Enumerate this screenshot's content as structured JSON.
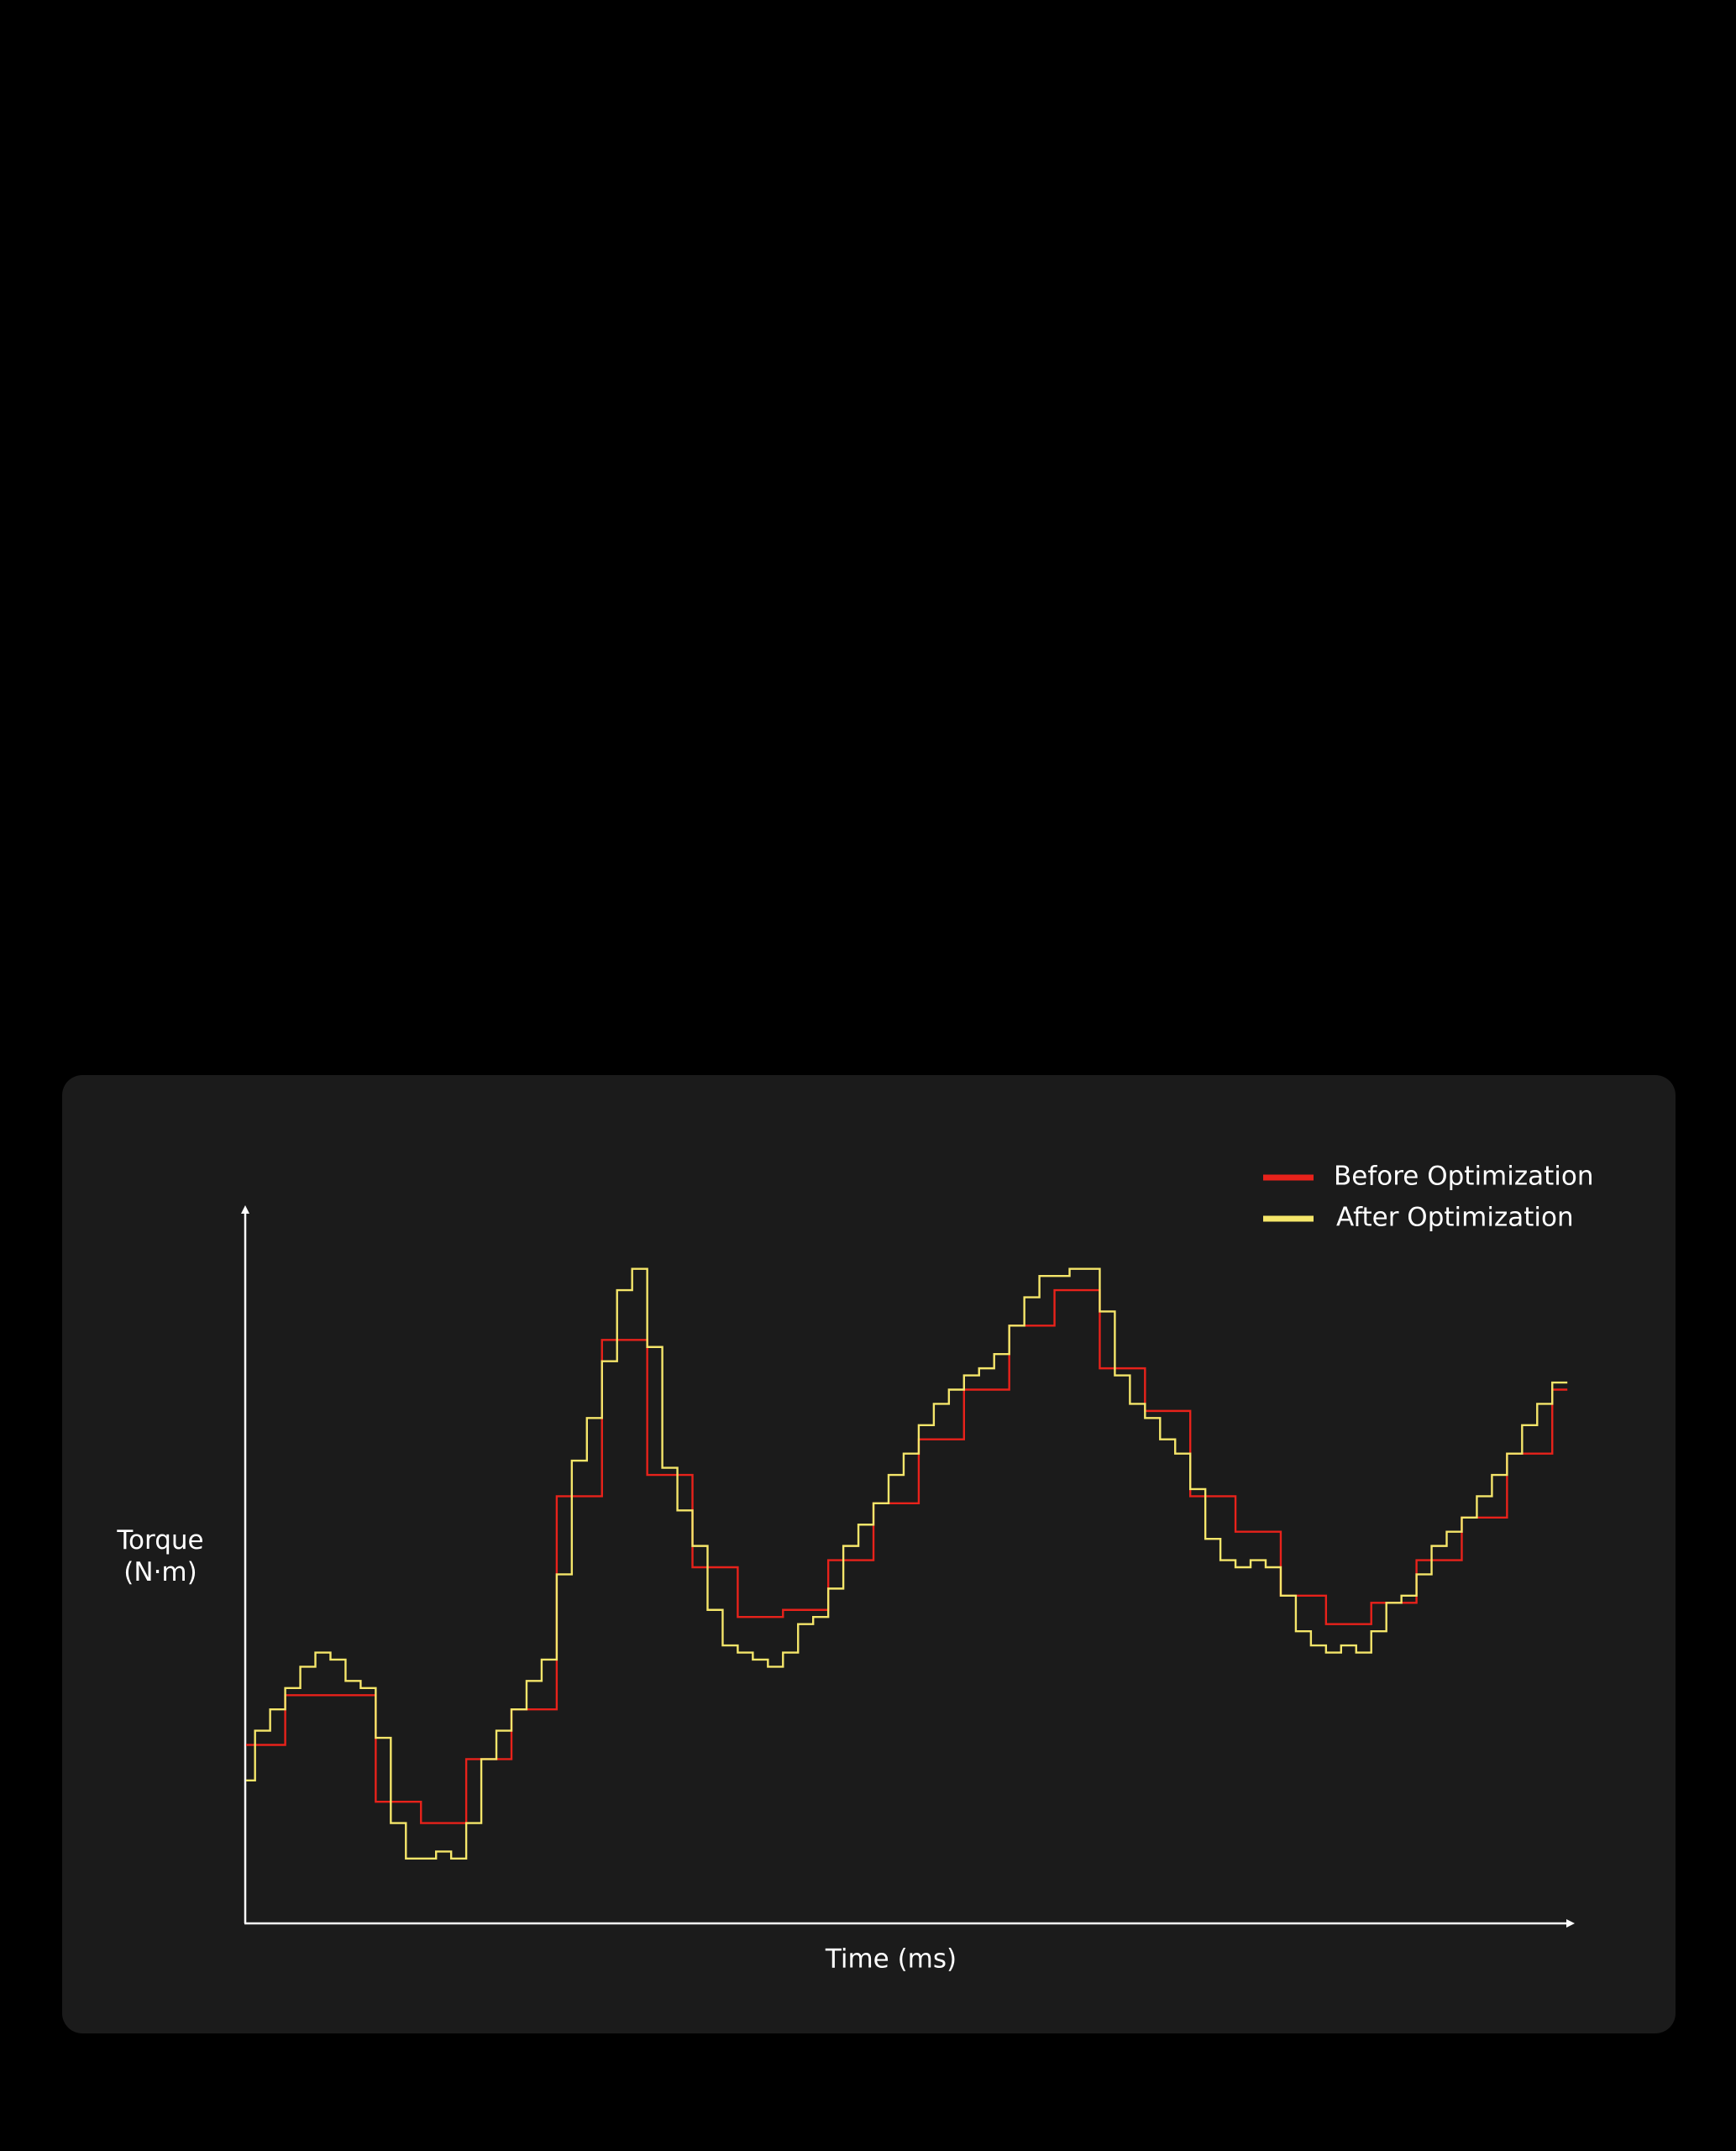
{
  "chart_data": {
    "type": "line",
    "drawstyle": "steps-post",
    "xlabel": "Time (ms)",
    "ylabel": "Torque (N·m)",
    "xlim": [
      0.4,
      88
    ],
    "ylim": [
      0,
      100
    ],
    "legend": "upper right",
    "series": [
      {
        "name": "Before Optimization",
        "color": "#e8221b",
        "x": [
          0.4,
          3,
          9,
          12,
          15,
          18,
          21,
          24,
          27,
          30,
          33,
          36,
          39,
          42,
          45,
          48,
          51,
          54,
          57,
          60,
          63,
          66,
          69,
          72,
          75,
          78,
          81,
          84,
          87
        ],
        "values": [
          25,
          32,
          17,
          14,
          23,
          30,
          60,
          82,
          63,
          50,
          43,
          44,
          51,
          59,
          68,
          75,
          84,
          89,
          78,
          72,
          60,
          55,
          46,
          42,
          45,
          51,
          57,
          66,
          75
        ]
      },
      {
        "name": "After Optimization",
        "color": "#f5e66a",
        "x": [
          0.4,
          1,
          2,
          3,
          4,
          5,
          6,
          7,
          8,
          9,
          10,
          11,
          12,
          13,
          14,
          15,
          16,
          17,
          18,
          19,
          20,
          21,
          22,
          23,
          24,
          25,
          26,
          27,
          28,
          29,
          30,
          31,
          32,
          33,
          34,
          35,
          36,
          37,
          38,
          39,
          40,
          41,
          42,
          43,
          44,
          45,
          46,
          47,
          48,
          49,
          50,
          51,
          52,
          53,
          54,
          55,
          56,
          57,
          58,
          59,
          60,
          61,
          62,
          63,
          64,
          65,
          66,
          67,
          68,
          69,
          70,
          71,
          72,
          73,
          74,
          75,
          76,
          77,
          78,
          79,
          80,
          81,
          82,
          83,
          84,
          85,
          86,
          87
        ],
        "values": [
          20,
          27,
          30,
          33,
          36,
          38,
          37,
          34,
          33,
          26,
          14,
          9,
          9,
          10,
          9,
          14,
          23,
          27,
          30,
          34,
          37,
          49,
          65,
          71,
          79,
          89,
          92,
          81,
          64,
          58,
          53,
          44,
          39,
          38,
          37,
          36,
          38,
          42,
          43,
          47,
          53,
          56,
          59,
          63,
          66,
          70,
          73,
          75,
          77,
          78,
          80,
          84,
          88,
          91,
          91,
          92,
          92,
          86,
          77,
          73,
          71,
          68,
          66,
          61,
          54,
          51,
          50,
          51,
          50,
          46,
          41,
          39,
          38,
          39,
          38,
          41,
          45,
          46,
          49,
          53,
          55,
          57,
          60,
          63,
          66,
          70,
          73,
          76
        ]
      }
    ]
  }
}
